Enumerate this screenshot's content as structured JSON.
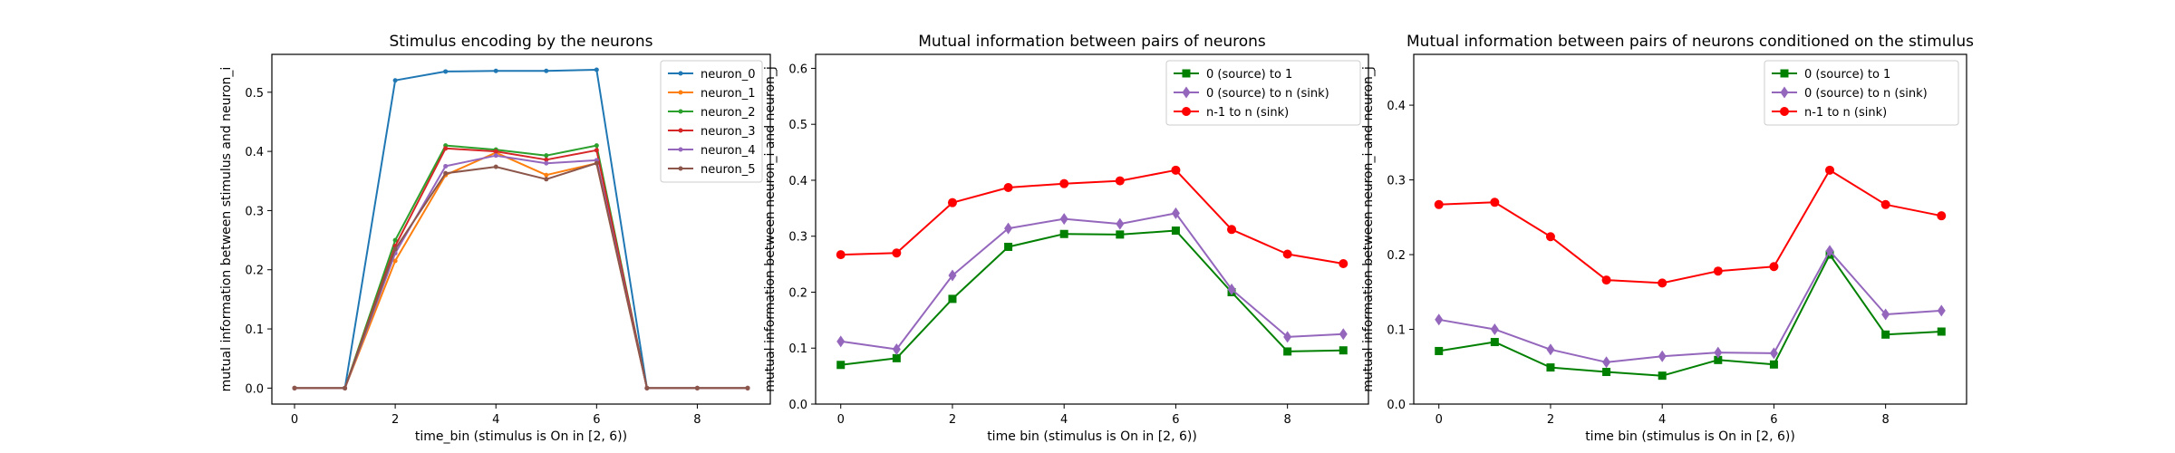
{
  "chart_data": [
    {
      "type": "line",
      "title": "Stimulus encoding by the neurons",
      "xlabel": "time_bin (stimulus is On in [2, 6))",
      "ylabel": "mutual information between stimulus and neuron_i",
      "x": [
        0,
        1,
        2,
        3,
        4,
        5,
        6,
        7,
        8,
        9
      ],
      "xlim": [
        -0.45,
        9.45
      ],
      "ylim": [
        -0.027,
        0.564
      ],
      "xticks": [
        0,
        2,
        4,
        6,
        8
      ],
      "yticks": [
        0.0,
        0.1,
        0.2,
        0.3,
        0.4,
        0.5
      ],
      "ytick_labels": [
        "0.0",
        "0.1",
        "0.2",
        "0.3",
        "0.4",
        "0.5"
      ],
      "legend_position": "upper right",
      "series": [
        {
          "name": "neuron_0",
          "color": "#1f77b4",
          "marker": "dot",
          "values": [
            0.0,
            0.0,
            0.52,
            0.535,
            0.536,
            0.536,
            0.538,
            0.0,
            0.0,
            0.0
          ]
        },
        {
          "name": "neuron_1",
          "color": "#ff7f0e",
          "marker": "dot",
          "values": [
            0.0,
            0.0,
            0.215,
            0.36,
            0.398,
            0.36,
            0.38,
            0.0,
            0.0,
            0.0
          ]
        },
        {
          "name": "neuron_2",
          "color": "#2ca02c",
          "marker": "dot",
          "values": [
            0.0,
            0.0,
            0.25,
            0.41,
            0.403,
            0.393,
            0.41,
            0.0,
            0.0,
            0.0
          ]
        },
        {
          "name": "neuron_3",
          "color": "#d62728",
          "marker": "dot",
          "values": [
            0.0,
            0.0,
            0.24,
            0.405,
            0.4,
            0.386,
            0.402,
            0.0,
            0.0,
            0.0
          ]
        },
        {
          "name": "neuron_4",
          "color": "#9467bd",
          "marker": "dot",
          "values": [
            0.0,
            0.0,
            0.228,
            0.375,
            0.393,
            0.38,
            0.385,
            0.0,
            0.0,
            0.0
          ]
        },
        {
          "name": "neuron_5",
          "color": "#8c564b",
          "marker": "dot",
          "values": [
            0.0,
            0.0,
            0.235,
            0.363,
            0.374,
            0.353,
            0.38,
            0.0,
            0.0,
            0.0
          ]
        }
      ]
    },
    {
      "type": "line",
      "title": "Mutual information between pairs of neurons",
      "xlabel": "time bin (stimulus is On in [2, 6))",
      "ylabel": "mutual information between neuron_i and neuron_j",
      "x": [
        0,
        1,
        2,
        3,
        4,
        5,
        6,
        7,
        8,
        9
      ],
      "xlim": [
        -0.45,
        9.45
      ],
      "ylim": [
        0.0,
        0.625
      ],
      "xticks": [
        0,
        2,
        4,
        6,
        8
      ],
      "yticks": [
        0.0,
        0.1,
        0.2,
        0.3,
        0.4,
        0.5,
        0.6
      ],
      "ytick_labels": [
        "0.0",
        "0.1",
        "0.2",
        "0.3",
        "0.4",
        "0.5",
        "0.6"
      ],
      "legend_position": "upper right",
      "series": [
        {
          "name": "0 (source) to 1",
          "color": "#008000",
          "marker": "square",
          "values": [
            0.07,
            0.082,
            0.188,
            0.281,
            0.304,
            0.303,
            0.31,
            0.2,
            0.094,
            0.096
          ]
        },
        {
          "name": "0 (source) to n (sink)",
          "color": "#9467bd",
          "marker": "diamond",
          "values": [
            0.112,
            0.098,
            0.23,
            0.314,
            0.331,
            0.322,
            0.341,
            0.205,
            0.12,
            0.125
          ]
        },
        {
          "name": "n-1 to n (sink)",
          "color": "#ff0000",
          "marker": "circle",
          "values": [
            0.267,
            0.27,
            0.36,
            0.387,
            0.394,
            0.399,
            0.418,
            0.312,
            0.268,
            0.251
          ]
        }
      ]
    },
    {
      "type": "line",
      "title": "Mutual information between pairs of neurons conditioned on the stimulus",
      "xlabel": "time bin (stimulus is On in [2, 6))",
      "ylabel": "mutual information between neuron_i and neuron_j",
      "x": [
        0,
        1,
        2,
        3,
        4,
        5,
        6,
        7,
        8,
        9
      ],
      "xlim": [
        -0.45,
        9.45
      ],
      "ylim": [
        0.0,
        0.468
      ],
      "xticks": [
        0,
        2,
        4,
        6,
        8
      ],
      "yticks": [
        0.0,
        0.1,
        0.2,
        0.3,
        0.4
      ],
      "ytick_labels": [
        "0.0",
        "0.1",
        "0.2",
        "0.3",
        "0.4"
      ],
      "legend_position": "upper right",
      "series": [
        {
          "name": "0 (source) to 1",
          "color": "#008000",
          "marker": "square",
          "values": [
            0.071,
            0.083,
            0.049,
            0.043,
            0.038,
            0.059,
            0.053,
            0.2,
            0.093,
            0.097
          ]
        },
        {
          "name": "0 (source) to n (sink)",
          "color": "#9467bd",
          "marker": "diamond",
          "values": [
            0.113,
            0.1,
            0.073,
            0.056,
            0.064,
            0.069,
            0.068,
            0.205,
            0.12,
            0.125
          ]
        },
        {
          "name": "n-1 to n (sink)",
          "color": "#ff0000",
          "marker": "circle",
          "values": [
            0.267,
            0.27,
            0.224,
            0.166,
            0.162,
            0.178,
            0.184,
            0.313,
            0.267,
            0.252
          ]
        }
      ]
    }
  ]
}
